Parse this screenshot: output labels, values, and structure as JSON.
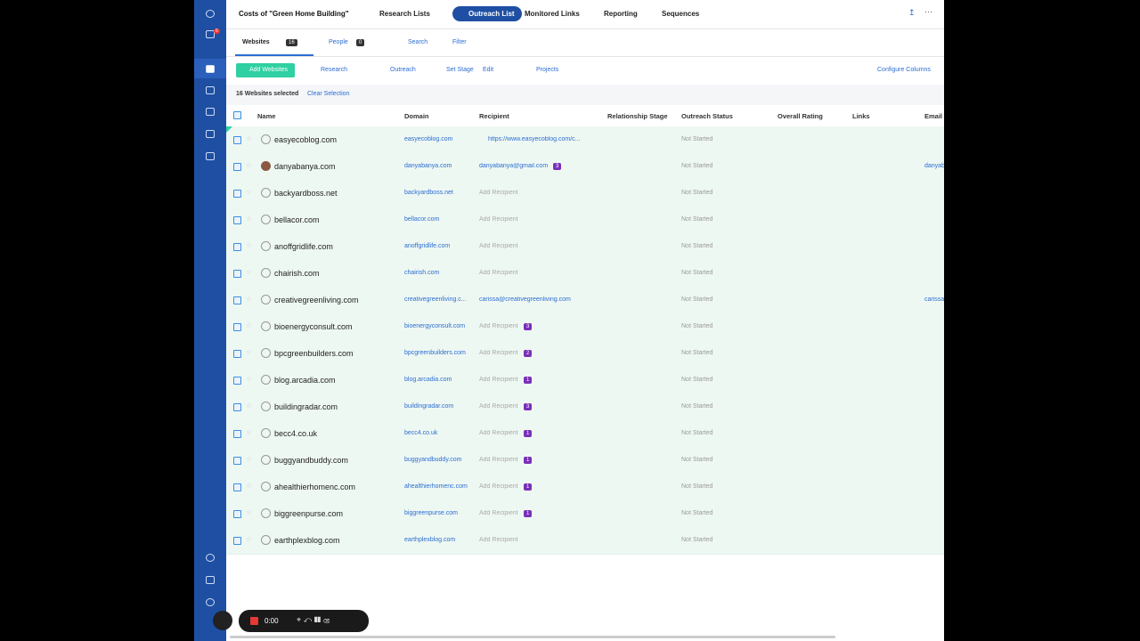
{
  "topnav": {
    "project": "Costs of \"Green Home Building\"",
    "tabs": [
      "Research Lists",
      "Outreach List",
      "Monitored Links",
      "Reporting",
      "Sequences"
    ],
    "active_tab": 1
  },
  "sidebar": {
    "notification_count": "6"
  },
  "subtabs": {
    "websites": "Websites",
    "websites_count": "16",
    "people": "People",
    "people_count": "0",
    "search": "Search",
    "filter": "Filter"
  },
  "toolbar": {
    "add": "Add Websites",
    "actions": [
      "Research",
      "Outreach",
      "Set Stage",
      "Edit",
      "Projects"
    ],
    "configure": "Configure Columns"
  },
  "selection": {
    "text": "16 Websites selected",
    "clear": "Clear Selection"
  },
  "table": {
    "columns": [
      "Name",
      "Domain",
      "Recipient",
      "Relationship Stage",
      "Outreach Status",
      "Overall Rating",
      "Links",
      "Email"
    ],
    "rows": [
      {
        "name": "easyecoblog.com",
        "domain": "easyecoblog.com",
        "recipient": "https://www.easyecoblog.com/c...",
        "status": "Not Started"
      },
      {
        "name": "danyabanya.com",
        "domain": "danyabanya.com",
        "recipient": "danyabanya@gmail.com",
        "badge": "3",
        "status": "Not Started",
        "email": "danyab"
      },
      {
        "name": "backyardboss.net",
        "domain": "backyardboss.net",
        "recipient": "Add Recipient",
        "status": "Not Started"
      },
      {
        "name": "bellacor.com",
        "domain": "bellacor.com",
        "recipient": "Add Recipient",
        "status": "Not Started"
      },
      {
        "name": "anoffgridlife.com",
        "domain": "anoffgridlife.com",
        "recipient": "Add Recipient",
        "status": "Not Started"
      },
      {
        "name": "chairish.com",
        "domain": "chairish.com",
        "recipient": "Add Recipient",
        "status": "Not Started"
      },
      {
        "name": "creativegreenliving.com",
        "domain": "creativegreenliving.c...",
        "recipient": "carissa@creativegreenliving.com",
        "status": "Not Started",
        "email": "carissa"
      },
      {
        "name": "bioenergyconsult.com",
        "domain": "bioenergyconsult.com",
        "recipient": "Add Recipient",
        "badge": "3",
        "status": "Not Started"
      },
      {
        "name": "bpcgreenbuilders.com",
        "domain": "bpcgreenbuilders.com",
        "recipient": "Add Recipient",
        "badge": "2",
        "status": "Not Started"
      },
      {
        "name": "blog.arcadia.com",
        "domain": "blog.arcadia.com",
        "recipient": "Add Recipient",
        "badge": "1",
        "status": "Not Started"
      },
      {
        "name": "buildingradar.com",
        "domain": "buildingradar.com",
        "recipient": "Add Recipient",
        "badge": "3",
        "status": "Not Started"
      },
      {
        "name": "becc4.co.uk",
        "domain": "becc4.co.uk",
        "recipient": "Add Recipient",
        "badge": "1",
        "status": "Not Started"
      },
      {
        "name": "buggyandbuddy.com",
        "domain": "buggyandbuddy.com",
        "recipient": "Add Recipient",
        "badge": "1",
        "status": "Not Started"
      },
      {
        "name": "ahealthierhomenc.com",
        "domain": "ahealthierhomenc.com",
        "recipient": "Add Recipient",
        "badge": "1",
        "status": "Not Started"
      },
      {
        "name": "biggreenpurse.com",
        "domain": "biggreenpurse.com",
        "recipient": "Add Recipient",
        "badge": "1",
        "status": "Not Started"
      },
      {
        "name": "earthplexblog.com",
        "domain": "earthplexblog.com",
        "recipient": "Add Recipient",
        "status": "Not Started"
      }
    ]
  },
  "recorder": {
    "time": "0:00"
  }
}
